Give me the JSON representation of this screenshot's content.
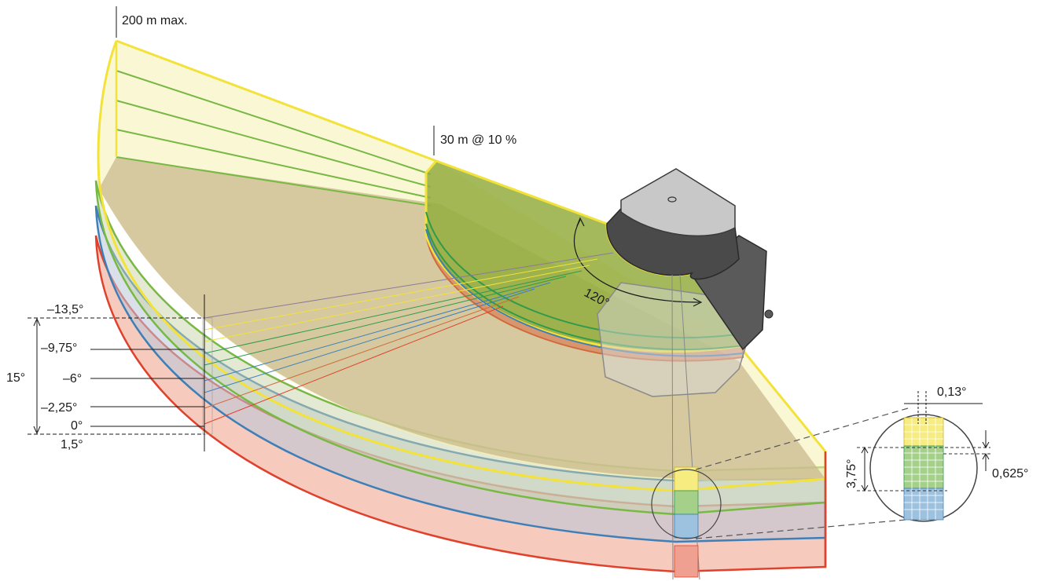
{
  "labels": {
    "range_max": "200 m max.",
    "range_10pct": "30 m @ 10 %",
    "fov": "120°",
    "total_vertical": "15°",
    "angle_top": "–13,5°",
    "angle_2": "–9,75°",
    "angle_3": "–6°",
    "angle_4": "–2,25°",
    "angle_zero": "0°",
    "angle_bottom": "1,5°",
    "horizontal_resolution": "0,13°",
    "layer_group_spacing": "3,75°",
    "vertical_resolution": "0,625°"
  },
  "colors": {
    "yellow": "#f2e23a",
    "green": "#78b844",
    "blue": "#3e7fb8",
    "red": "#e0412c",
    "orange": "#d06a3a",
    "device": "#4a4a4a"
  }
}
